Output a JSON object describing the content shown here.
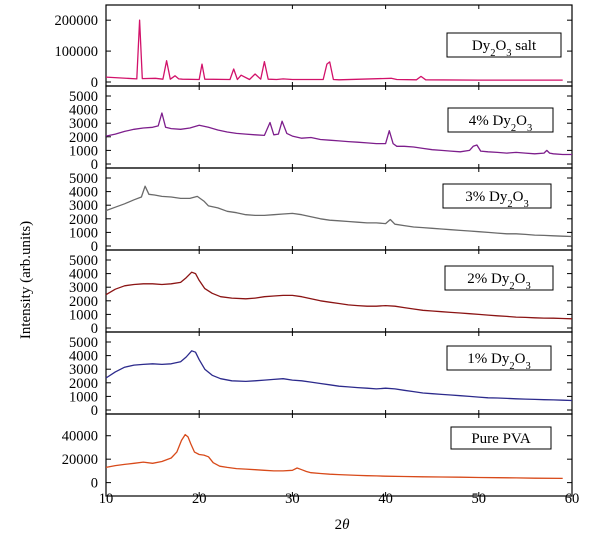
{
  "chart_data": {
    "type": "line",
    "layout": "stacked-panels",
    "ylabel": "Intensity (arb.units)",
    "xlabel": "2θ",
    "xlabel_parts": {
      "base": "2",
      "italic": "θ"
    },
    "xlim": [
      10,
      60
    ],
    "xticks": [
      10,
      20,
      30,
      40,
      50,
      60
    ],
    "panels": [
      {
        "name": "Dy2O3 salt",
        "legend": [
          {
            "t": "Dy"
          },
          {
            "t": "2",
            "sub": true
          },
          {
            "t": "O"
          },
          {
            "t": "3",
            "sub": true
          },
          {
            "t": " salt"
          }
        ],
        "color": "#d2126a",
        "ylim": [
          0,
          220000
        ],
        "yticks": [
          0,
          100000,
          200000
        ],
        "x": [
          10,
          13.3,
          13.6,
          13.9,
          15.3,
          16.1,
          16.5,
          16.9,
          17.4,
          17.8,
          18.2,
          20.0,
          20.3,
          20.6,
          23.3,
          23.7,
          24.1,
          24.5,
          25.4,
          26.0,
          26.6,
          27.0,
          27.4,
          28.3,
          29.0,
          30.0,
          33.3,
          33.7,
          34.0,
          34.4,
          35.0,
          40.6,
          41.2,
          43.3,
          43.8,
          44.3,
          50.0,
          55.0,
          59.0
        ],
        "y": [
          16000,
          10000,
          200000,
          11000,
          12000,
          9000,
          69000,
          9000,
          20000,
          10000,
          9000,
          8000,
          58000,
          9000,
          8000,
          42000,
          8000,
          22000,
          8000,
          26000,
          9000,
          66000,
          9000,
          8000,
          10000,
          8000,
          8000,
          58000,
          65000,
          8000,
          7000,
          12000,
          8000,
          7000,
          18000,
          7000,
          6000,
          6000,
          6000
        ]
      },
      {
        "name": "4% Dy2O3",
        "legend": [
          {
            "t": "4% Dy"
          },
          {
            "t": "2",
            "sub": true
          },
          {
            "t": "O"
          },
          {
            "t": "3",
            "sub": true
          }
        ],
        "color": "#7d1e8c",
        "ylim": [
          0,
          5000
        ],
        "yticks": [
          0,
          1000,
          2000,
          3000,
          4000,
          5000
        ],
        "x": [
          10,
          11,
          12,
          13,
          14,
          15,
          15.6,
          16.0,
          16.4,
          17,
          18,
          19,
          20,
          21,
          22,
          23,
          24,
          25,
          26,
          27,
          27.6,
          28.0,
          28.5,
          28.9,
          29.4,
          30,
          31,
          32,
          33,
          34,
          35,
          36,
          37,
          38,
          39,
          40,
          40.4,
          40.8,
          41.2,
          42,
          43,
          44,
          45,
          46,
          47,
          48,
          49,
          49.4,
          49.8,
          50.2,
          51,
          52,
          53,
          54,
          55,
          56,
          57,
          57.3,
          57.6,
          58,
          59,
          60
        ],
        "y": [
          2050,
          2200,
          2400,
          2550,
          2650,
          2700,
          2800,
          3750,
          2700,
          2600,
          2550,
          2650,
          2850,
          2700,
          2500,
          2350,
          2250,
          2200,
          2150,
          2100,
          3050,
          2150,
          2200,
          3150,
          2250,
          2050,
          1900,
          1950,
          1800,
          1750,
          1700,
          1650,
          1600,
          1550,
          1500,
          1500,
          2450,
          1500,
          1300,
          1300,
          1250,
          1150,
          1050,
          1000,
          950,
          900,
          1000,
          1300,
          1400,
          950,
          900,
          850,
          800,
          850,
          800,
          750,
          800,
          1000,
          800,
          750,
          700,
          700
        ]
      },
      {
        "name": "3% Dy2O3",
        "legend": [
          {
            "t": "3% Dy"
          },
          {
            "t": "2",
            "sub": true
          },
          {
            "t": "O"
          },
          {
            "t": "3",
            "sub": true
          }
        ],
        "color": "#6a6a6a",
        "ylim": [
          0,
          5000
        ],
        "yticks": [
          0,
          1000,
          2000,
          3000,
          4000,
          5000
        ],
        "x": [
          10,
          11,
          12,
          13,
          13.8,
          14.2,
          14.6,
          15.2,
          16,
          17,
          18,
          19,
          19.8,
          20.5,
          21,
          22,
          23,
          24,
          25,
          26,
          27,
          28,
          29,
          30,
          31,
          32,
          33,
          34,
          35,
          36,
          37,
          38,
          39,
          40,
          40.5,
          41,
          42,
          43,
          44,
          45,
          46,
          47,
          48,
          49,
          50,
          51,
          52,
          53,
          54,
          55,
          56,
          57,
          58,
          59,
          60
        ],
        "y": [
          2600,
          2850,
          3100,
          3400,
          3600,
          4400,
          3800,
          3750,
          3650,
          3600,
          3500,
          3500,
          3650,
          3300,
          2950,
          2800,
          2550,
          2450,
          2300,
          2250,
          2250,
          2300,
          2350,
          2400,
          2300,
          2150,
          2000,
          1900,
          1850,
          1800,
          1750,
          1700,
          1700,
          1650,
          1950,
          1600,
          1500,
          1400,
          1350,
          1300,
          1250,
          1200,
          1150,
          1100,
          1050,
          1000,
          950,
          900,
          900,
          850,
          800,
          780,
          750,
          720,
          700
        ]
      },
      {
        "name": "2% Dy2O3",
        "legend": [
          {
            "t": "2% Dy"
          },
          {
            "t": "2",
            "sub": true
          },
          {
            "t": "O"
          },
          {
            "t": "3",
            "sub": true
          }
        ],
        "color": "#8b1414",
        "ylim": [
          0,
          5000
        ],
        "yticks": [
          0,
          1000,
          2000,
          3000,
          4000,
          5000
        ],
        "x": [
          10,
          11,
          12,
          13,
          14,
          15,
          16,
          17,
          18,
          18.6,
          19.2,
          19.6,
          20.0,
          20.6,
          21.4,
          22.3,
          23.5,
          25,
          26,
          27,
          28,
          29,
          30,
          31,
          32,
          33,
          34,
          35,
          36,
          37,
          38,
          39,
          40,
          41,
          42,
          43,
          44,
          45,
          46,
          47,
          48,
          49,
          50,
          51,
          52,
          53,
          54,
          55,
          56,
          57,
          58,
          59,
          60
        ],
        "y": [
          2450,
          2850,
          3100,
          3200,
          3250,
          3250,
          3200,
          3250,
          3350,
          3700,
          4100,
          4000,
          3500,
          2900,
          2550,
          2300,
          2200,
          2150,
          2200,
          2300,
          2350,
          2400,
          2400,
          2300,
          2150,
          2000,
          1900,
          1800,
          1700,
          1650,
          1600,
          1600,
          1650,
          1600,
          1500,
          1400,
          1300,
          1250,
          1200,
          1150,
          1100,
          1050,
          1000,
          950,
          900,
          850,
          800,
          780,
          750,
          730,
          720,
          700,
          680
        ]
      },
      {
        "name": "1% Dy2O3",
        "legend": [
          {
            "t": "1% Dy"
          },
          {
            "t": "2",
            "sub": true
          },
          {
            "t": "O"
          },
          {
            "t": "3",
            "sub": true
          }
        ],
        "color": "#2c2a8c",
        "ylim": [
          0,
          5000
        ],
        "yticks": [
          0,
          1000,
          2000,
          3000,
          4000,
          5000
        ],
        "x": [
          10,
          11,
          12,
          13,
          14,
          15,
          16,
          17,
          18,
          18.6,
          19.2,
          19.6,
          20.0,
          20.6,
          21.4,
          22.3,
          23.5,
          25,
          26,
          27,
          28,
          29,
          30,
          31,
          32,
          33,
          34,
          35,
          36,
          37,
          38,
          39,
          40,
          41,
          42,
          43,
          44,
          45,
          46,
          47,
          48,
          49,
          50,
          51,
          52,
          53,
          54,
          55,
          56,
          57,
          58,
          59,
          60
        ],
        "y": [
          2350,
          2800,
          3150,
          3300,
          3350,
          3400,
          3350,
          3400,
          3550,
          3900,
          4350,
          4250,
          3700,
          3000,
          2550,
          2300,
          2150,
          2100,
          2150,
          2200,
          2250,
          2300,
          2200,
          2150,
          2050,
          1950,
          1850,
          1750,
          1700,
          1650,
          1600,
          1550,
          1600,
          1550,
          1450,
          1350,
          1250,
          1200,
          1150,
          1100,
          1050,
          1000,
          950,
          900,
          880,
          850,
          820,
          800,
          780,
          760,
          740,
          720,
          700
        ]
      },
      {
        "name": "Pure PVA",
        "legend": [
          {
            "t": "Pure PVA"
          }
        ],
        "color": "#d84a1a",
        "ylim": [
          -8000,
          50000
        ],
        "yticks": [
          0,
          20000,
          40000
        ],
        "x": [
          10,
          11,
          12,
          13,
          14,
          15,
          16,
          17,
          17.6,
          18.1,
          18.5,
          18.8,
          19.1,
          19.5,
          20.0,
          20.5,
          21.0,
          21.5,
          22.2,
          23,
          24,
          25,
          26,
          27,
          28,
          29,
          30,
          30.5,
          31,
          31.5,
          32,
          33,
          34,
          35,
          36,
          37,
          38,
          39,
          40,
          42,
          44,
          46,
          48,
          50,
          52,
          54,
          56,
          59
        ],
        "y": [
          13000,
          14500,
          15500,
          16500,
          17500,
          16500,
          18000,
          21000,
          26000,
          36000,
          41000,
          39000,
          33000,
          26000,
          24000,
          23500,
          22000,
          17000,
          14000,
          13000,
          12000,
          11500,
          11000,
          10500,
          10000,
          10000,
          10500,
          12500,
          11000,
          9500,
          8500,
          7800,
          7200,
          6800,
          6500,
          6200,
          5900,
          5700,
          5500,
          5200,
          5000,
          4800,
          4600,
          4400,
          4200,
          4000,
          3800,
          3600
        ]
      }
    ]
  }
}
